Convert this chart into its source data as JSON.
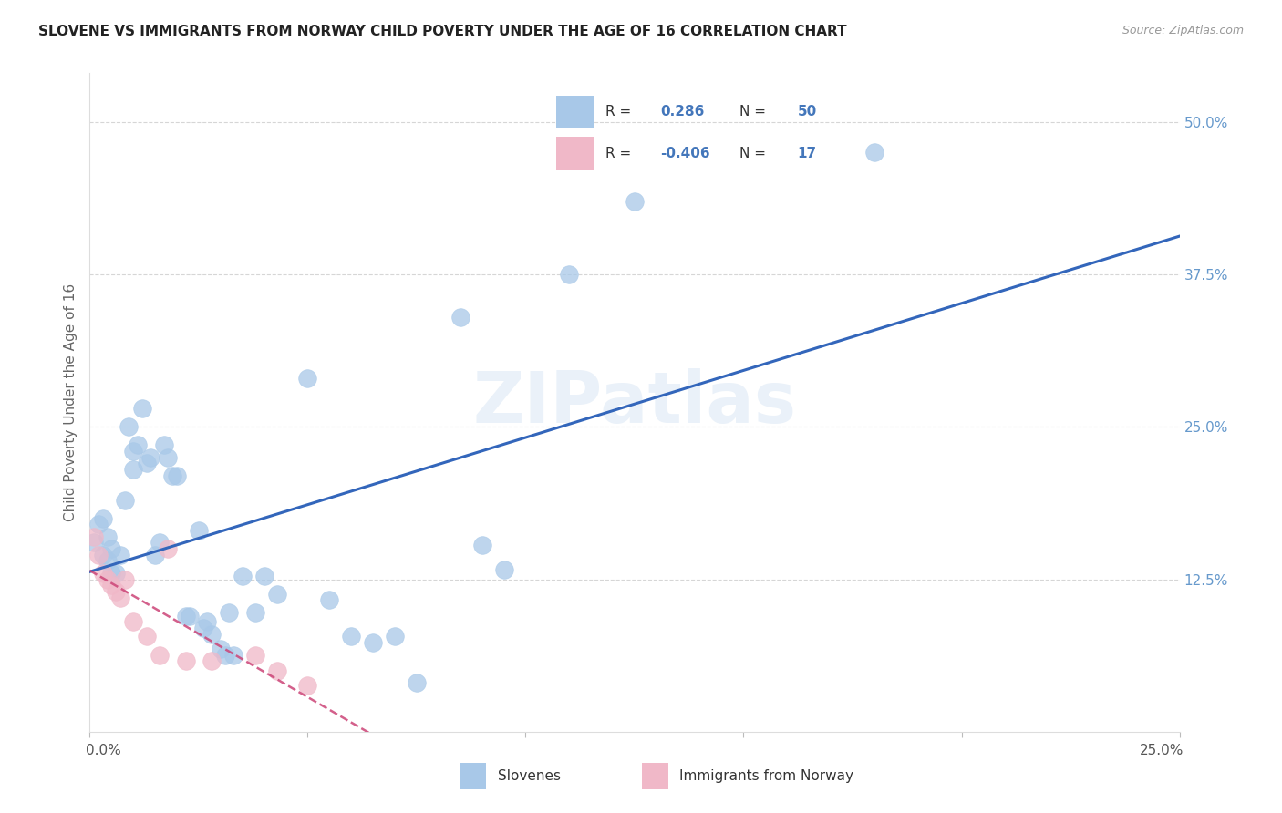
{
  "title": "SLOVENE VS IMMIGRANTS FROM NORWAY CHILD POVERTY UNDER THE AGE OF 16 CORRELATION CHART",
  "source": "Source: ZipAtlas.com",
  "ylabel": "Child Poverty Under the Age of 16",
  "yticks_labels": [
    "50.0%",
    "37.5%",
    "25.0%",
    "12.5%"
  ],
  "ytick_vals": [
    0.5,
    0.375,
    0.25,
    0.125
  ],
  "xlim": [
    0.0,
    0.25
  ],
  "ylim": [
    0.0,
    0.54
  ],
  "legend_label1": "Slovenes",
  "legend_label2": "Immigrants from Norway",
  "r1": 0.286,
  "n1": 50,
  "r2": -0.406,
  "n2": 17,
  "blue_color": "#a8c8e8",
  "pink_color": "#f0b8c8",
  "blue_line_color": "#3366bb",
  "pink_line_color": "#cc4477",
  "watermark_text": "ZIPatlas",
  "blue_points_x": [
    0.001,
    0.002,
    0.003,
    0.003,
    0.004,
    0.004,
    0.005,
    0.005,
    0.006,
    0.007,
    0.008,
    0.009,
    0.01,
    0.01,
    0.011,
    0.012,
    0.013,
    0.014,
    0.015,
    0.016,
    0.017,
    0.018,
    0.019,
    0.02,
    0.022,
    0.023,
    0.025,
    0.026,
    0.027,
    0.028,
    0.03,
    0.031,
    0.032,
    0.033,
    0.035,
    0.038,
    0.04,
    0.043,
    0.05,
    0.055,
    0.06,
    0.065,
    0.07,
    0.075,
    0.085,
    0.09,
    0.095,
    0.11,
    0.125,
    0.18
  ],
  "blue_points_y": [
    0.155,
    0.17,
    0.145,
    0.175,
    0.16,
    0.14,
    0.13,
    0.15,
    0.13,
    0.145,
    0.19,
    0.25,
    0.215,
    0.23,
    0.235,
    0.265,
    0.22,
    0.225,
    0.145,
    0.155,
    0.235,
    0.225,
    0.21,
    0.21,
    0.095,
    0.095,
    0.165,
    0.085,
    0.09,
    0.08,
    0.068,
    0.063,
    0.098,
    0.063,
    0.128,
    0.098,
    0.128,
    0.113,
    0.29,
    0.108,
    0.078,
    0.073,
    0.078,
    0.04,
    0.34,
    0.153,
    0.133,
    0.375,
    0.435,
    0.475
  ],
  "pink_points_x": [
    0.001,
    0.002,
    0.003,
    0.004,
    0.005,
    0.006,
    0.007,
    0.008,
    0.01,
    0.013,
    0.016,
    0.018,
    0.022,
    0.028,
    0.038,
    0.043,
    0.05
  ],
  "pink_points_y": [
    0.16,
    0.145,
    0.13,
    0.125,
    0.12,
    0.115,
    0.11,
    0.125,
    0.09,
    0.078,
    0.063,
    0.15,
    0.058,
    0.058,
    0.063,
    0.05,
    0.038
  ]
}
